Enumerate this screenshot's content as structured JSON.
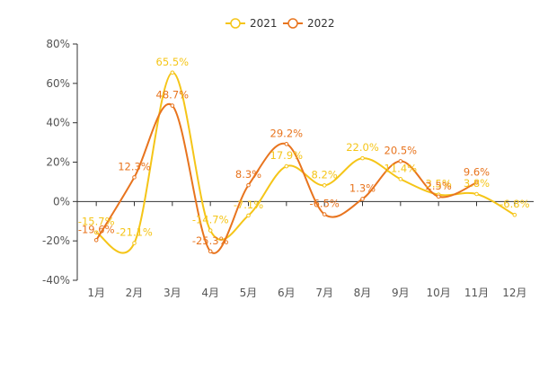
{
  "chart_data": {
    "type": "line",
    "smooth": true,
    "categories": [
      "1月",
      "2月",
      "3月",
      "4月",
      "5月",
      "6月",
      "7月",
      "8月",
      "9月",
      "10月",
      "11月",
      "12月"
    ],
    "series": [
      {
        "name": "2021",
        "color": "#f5c518",
        "values": [
          -15.7,
          -21.1,
          65.5,
          -14.7,
          -7.1,
          17.9,
          8.2,
          22.0,
          11.4,
          3.5,
          3.8,
          -6.8
        ],
        "labels": [
          "-15.7%",
          "-21.1%",
          "65.5%",
          "-14.7%",
          "-7.1%",
          "17.9%",
          "8.2%",
          "22.0%",
          "11.4%",
          "3.5%",
          "3.8%",
          "-6.8%"
        ]
      },
      {
        "name": "2022",
        "color": "#e8741e",
        "values": [
          -19.6,
          12.3,
          48.7,
          -25.3,
          8.3,
          29.2,
          -6.5,
          1.3,
          20.5,
          2.5,
          9.6,
          null
        ],
        "labels": [
          "-19.6%",
          "12.3%",
          "48.7%",
          "-25.3%",
          "8.3%",
          "29.2%",
          "-6.5%",
          "1.3%",
          "20.5%",
          "2.5%",
          "9.6%",
          null
        ]
      }
    ],
    "ylim": [
      -40,
      80
    ],
    "yticks": [
      -40,
      -20,
      0,
      20,
      40,
      60,
      80
    ],
    "ytick_labels": [
      "-40%",
      "-20%",
      "0%",
      "20%",
      "40%",
      "60%",
      "80%"
    ],
    "grid": false,
    "legend_position": "top-center"
  }
}
